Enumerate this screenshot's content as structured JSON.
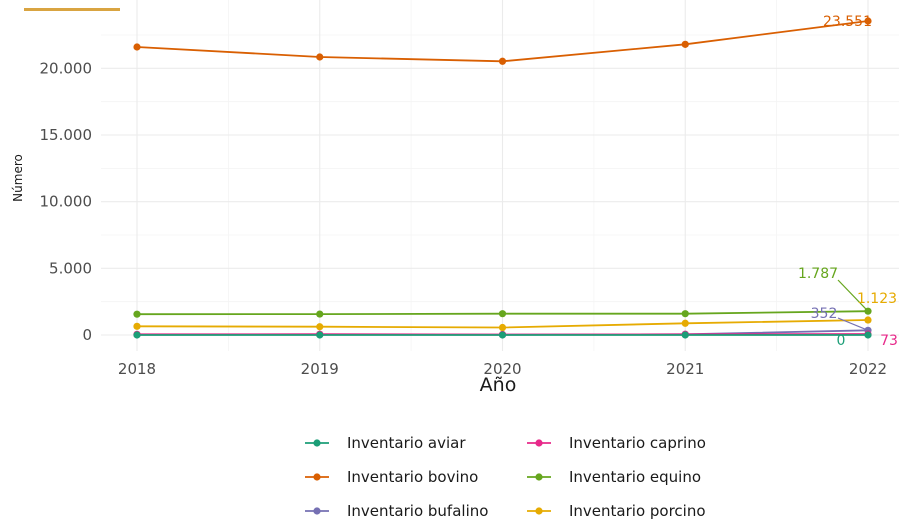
{
  "chart_data": {
    "type": "line",
    "title": "",
    "xlabel": "Año",
    "ylabel": "Número",
    "x": [
      "2018",
      "2019",
      "2020",
      "2021",
      "2022"
    ],
    "ylim": [
      0,
      23551
    ],
    "yticks": [
      {
        "value": 0,
        "label": "0"
      },
      {
        "value": 5000,
        "label": "5.000"
      },
      {
        "value": 10000,
        "label": "10.000"
      },
      {
        "value": 15000,
        "label": "15.000"
      },
      {
        "value": 20000,
        "label": "20.000"
      }
    ],
    "grid": true,
    "legend": "bottom",
    "series": [
      {
        "name": "Inventario aviar",
        "color": "#1b9e77",
        "values": [
          0,
          0,
          0,
          0,
          0
        ],
        "end_label": "0"
      },
      {
        "name": "Inventario bovino",
        "color": "#d95f02",
        "values": [
          21600,
          20850,
          20530,
          21800,
          23551
        ],
        "end_label": "23.551"
      },
      {
        "name": "Inventario bufalino",
        "color": "#7570b3",
        "values": [
          20,
          40,
          20,
          50,
          352
        ],
        "end_label": "352"
      },
      {
        "name": "Inventario caprino",
        "color": "#e7298a",
        "values": [
          50,
          60,
          40,
          55,
          73
        ],
        "end_label": "73"
      },
      {
        "name": "Inventario equino",
        "color": "#66a61e",
        "values": [
          1560,
          1570,
          1600,
          1600,
          1787
        ],
        "end_label": "1.787"
      },
      {
        "name": "Inventario porcino",
        "color": "#e6ab02",
        "values": [
          650,
          620,
          560,
          880,
          1123
        ],
        "end_label": "1.123"
      }
    ]
  }
}
